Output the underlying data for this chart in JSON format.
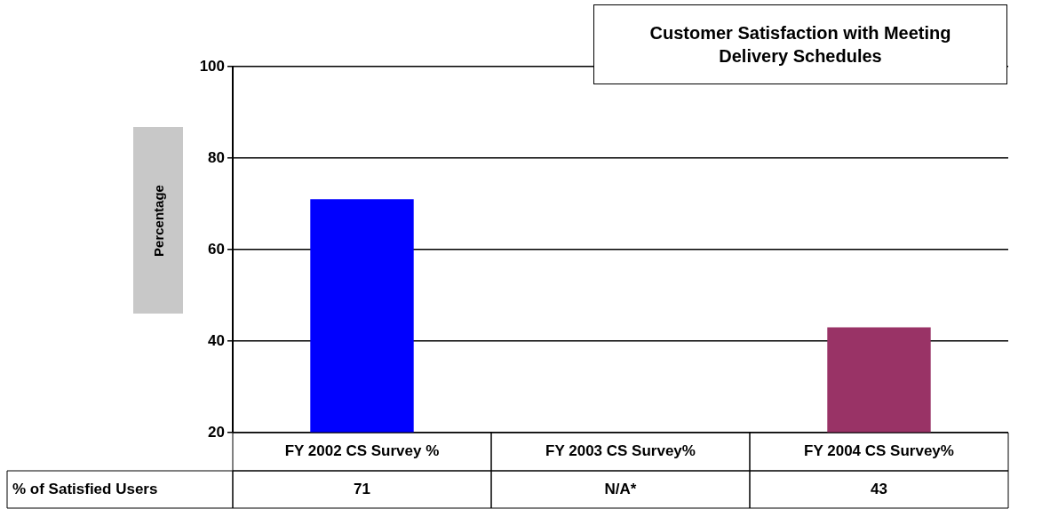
{
  "chart_data": {
    "type": "bar",
    "title": "Customer Satisfaction with Meeting Delivery Schedules",
    "ylabel": "Percentage",
    "categories": [
      "FY 2002 CS Survey %",
      "FY 2003 CS Survey%",
      "FY 2004 CS Survey%"
    ],
    "values": [
      71,
      null,
      43
    ],
    "colors": [
      "#0000ff",
      "#ffffff",
      "#993366"
    ],
    "value_labels": [
      "71",
      "N/A*",
      "43"
    ],
    "annotations": [
      "% of Satisfied Users"
    ],
    "ylim": [
      20,
      100
    ],
    "yticks": [
      20,
      40,
      60,
      80,
      100
    ],
    "grid": "y",
    "legend": false
  }
}
